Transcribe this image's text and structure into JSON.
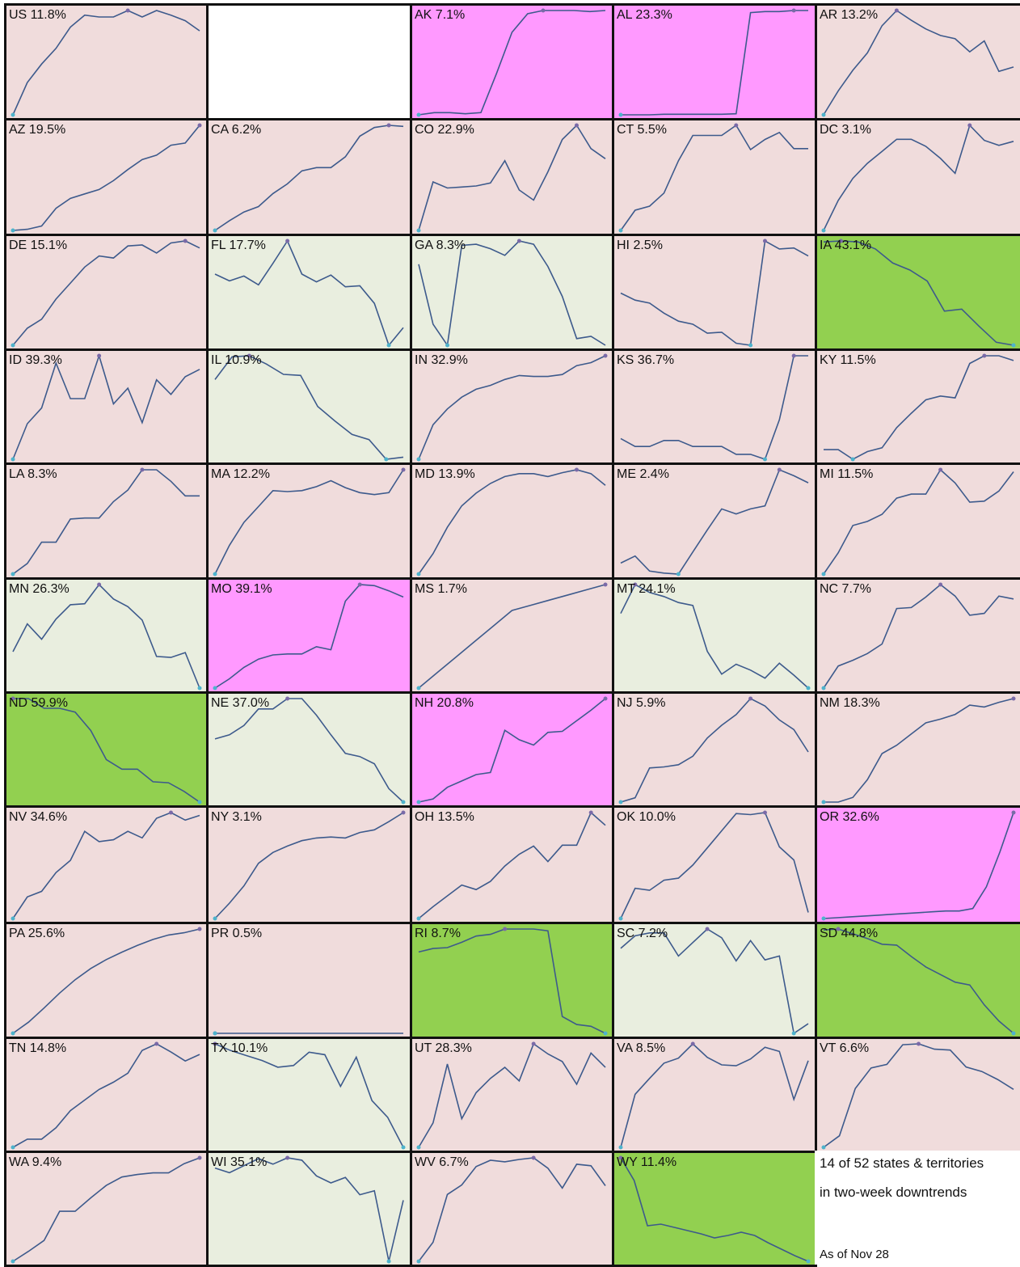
{
  "colors": {
    "rising": "#f0dcdc",
    "falling": "#e9eedf",
    "surging": "#ff99ff",
    "strongly_falling": "#92d050",
    "line": "#3d5a8c",
    "peak_marker": "#7a6aa8",
    "low_marker": "#4db3cc",
    "border": "#111111"
  },
  "note": {
    "line1": "14 of 52 states & territories",
    "line2": "in two-week downtrends",
    "date": "As of Nov 28"
  },
  "chart_data": [
    {
      "type": "line",
      "title": "US 11.8%",
      "status": "rising",
      "values": [
        0,
        35,
        55,
        72,
        95,
        108,
        106,
        106,
        113,
        106,
        113,
        108,
        102,
        91
      ]
    },
    {
      "type": "empty",
      "title": "",
      "status": "blank",
      "values": []
    },
    {
      "type": "line",
      "title": "AK 7.1%",
      "status": "surging",
      "values": [
        2,
        4,
        4,
        3,
        4,
        40,
        78,
        95,
        98,
        98,
        98,
        97,
        98
      ]
    },
    {
      "type": "line",
      "title": "AL 23.3%",
      "status": "surging",
      "values": [
        1,
        1,
        1,
        1.5,
        1.5,
        1.5,
        1.5,
        1.5,
        2,
        97,
        98,
        98,
        99,
        99
      ]
    },
    {
      "type": "line",
      "title": "AR 13.2%",
      "status": "rising",
      "values": [
        0,
        22,
        41,
        57,
        82,
        96,
        87,
        79,
        73,
        70,
        58,
        68,
        40,
        44
      ]
    },
    {
      "type": "line",
      "title": "AZ 19.5%",
      "status": "rising",
      "values": [
        0,
        1,
        4,
        20,
        29,
        33,
        37,
        45,
        55,
        64,
        68,
        77,
        79,
        95
      ]
    },
    {
      "type": "line",
      "title": "CA 6.2%",
      "status": "rising",
      "values": [
        0,
        9,
        17,
        22,
        34,
        43,
        55,
        58,
        58,
        68,
        87,
        95,
        97,
        96
      ]
    },
    {
      "type": "line",
      "title": "CO 22.9%",
      "status": "rising",
      "values": [
        0,
        48,
        42,
        43,
        44,
        47,
        69,
        40,
        30,
        58,
        90,
        104,
        81,
        71
      ]
    },
    {
      "type": "line",
      "title": "CT 5.5%",
      "status": "rising",
      "values": [
        0,
        20,
        24,
        37,
        69,
        94,
        94,
        94,
        104,
        80,
        90,
        97,
        81,
        81
      ]
    },
    {
      "type": "line",
      "title": "DC 3.1%",
      "status": "rising",
      "values": [
        0,
        30,
        52,
        67,
        79,
        91,
        91,
        84,
        72,
        57,
        105,
        90,
        85,
        89
      ]
    },
    {
      "type": "line",
      "title": "DE 15.1%",
      "status": "rising",
      "values": [
        0,
        17,
        26,
        46,
        62,
        78,
        89,
        87,
        99,
        100,
        92,
        102,
        104,
        97
      ]
    },
    {
      "type": "line",
      "title": "FL 17.7%",
      "status": "falling",
      "values": [
        73,
        66,
        71,
        62,
        84,
        107,
        73,
        65,
        72,
        60,
        61,
        43,
        0,
        18
      ]
    },
    {
      "type": "line",
      "title": "GA 8.3%",
      "status": "falling",
      "values": [
        73,
        19,
        0,
        90,
        91,
        87,
        81,
        94,
        91,
        71,
        44,
        6,
        8,
        0
      ]
    },
    {
      "type": "line",
      "title": "HI 2.5%",
      "status": "rising",
      "values": [
        52,
        45,
        42,
        32,
        24,
        21,
        12,
        13,
        2,
        0,
        104,
        96,
        97,
        89
      ]
    },
    {
      "type": "line",
      "title": "IA 43.1%",
      "status": "strongly_falling",
      "values": [
        103,
        104,
        103,
        96,
        82,
        75,
        64,
        34,
        36,
        19,
        3,
        0
      ]
    },
    {
      "type": "line",
      "title": "ID 39.3%",
      "status": "rising",
      "values": [
        0,
        34,
        49,
        92,
        58,
        58,
        99,
        53,
        68,
        35,
        76,
        62,
        79,
        86
      ]
    },
    {
      "type": "line",
      "title": "IL 10.9%",
      "status": "falling",
      "values": [
        77,
        99,
        100,
        92,
        82,
        81,
        51,
        37,
        24,
        19,
        0,
        2
      ]
    },
    {
      "type": "line",
      "title": "IN 32.9%",
      "status": "rising",
      "values": [
        0,
        35,
        51,
        63,
        71,
        75,
        81,
        85,
        84,
        84,
        86,
        95,
        98,
        105
      ]
    },
    {
      "type": "line",
      "title": "KS 36.7%",
      "status": "rising",
      "values": [
        21,
        13,
        13,
        19,
        19,
        13,
        13,
        13,
        5,
        5,
        0,
        40,
        105,
        105
      ]
    },
    {
      "type": "line",
      "title": "KY 11.5%",
      "status": "rising",
      "values": [
        10,
        10,
        0,
        8,
        12,
        33,
        48,
        62,
        66,
        64,
        100,
        108,
        108,
        103
      ]
    },
    {
      "type": "line",
      "title": "LA 8.3%",
      "status": "rising",
      "values": [
        0,
        11,
        33,
        33,
        57,
        58,
        58,
        75,
        87,
        108,
        108,
        96,
        81,
        81
      ]
    },
    {
      "type": "line",
      "title": "MA 12.2%",
      "status": "rising",
      "values": [
        0,
        29,
        52,
        68,
        84,
        83,
        84,
        88,
        94,
        87,
        82,
        80,
        82,
        105
      ]
    },
    {
      "type": "line",
      "title": "MD 13.9%",
      "status": "rising",
      "values": [
        0,
        21,
        48,
        70,
        83,
        93,
        100,
        103,
        103,
        100,
        104,
        107,
        103,
        91
      ]
    },
    {
      "type": "line",
      "title": "ME 2.4%",
      "status": "rising",
      "values": [
        11,
        18,
        3,
        1,
        0,
        22,
        44,
        65,
        60,
        65,
        68,
        104,
        98,
        91
      ]
    },
    {
      "type": "line",
      "title": "MI 11.5%",
      "status": "rising",
      "values": [
        0,
        21,
        48,
        52,
        59,
        75,
        79,
        79,
        103,
        90,
        71,
        72,
        82,
        101
      ]
    },
    {
      "type": "line",
      "title": "MN 26.3%",
      "status": "falling",
      "values": [
        38,
        67,
        51,
        72,
        87,
        88,
        108,
        93,
        85,
        71,
        33,
        32,
        37,
        0
      ]
    },
    {
      "type": "line",
      "title": "MO 39.1%",
      "status": "surging",
      "values": [
        0,
        9,
        20,
        28,
        32,
        33,
        33,
        40,
        37,
        84,
        100,
        99,
        94,
        88
      ]
    },
    {
      "type": "line",
      "title": "MS 1.7%",
      "status": "rising",
      "values": [
        0,
        18,
        36,
        54,
        72,
        90,
        96,
        102,
        108,
        114,
        120
      ]
    },
    {
      "type": "line",
      "title": "MT 24.1%",
      "status": "falling",
      "values": [
        75,
        104,
        96,
        92,
        86,
        83,
        37,
        14,
        24,
        18,
        10,
        25,
        13,
        0
      ]
    },
    {
      "type": "line",
      "title": "NC 7.7%",
      "status": "rising",
      "values": [
        0,
        23,
        29,
        36,
        46,
        83,
        84,
        95,
        108,
        96,
        76,
        78,
        96,
        93
      ]
    },
    {
      "type": "line",
      "title": "ND 59.9%",
      "status": "strongly_falling",
      "values": [
        112,
        112,
        102,
        102,
        98,
        79,
        49,
        39,
        39,
        26,
        25,
        16,
        5
      ]
    },
    {
      "type": "line",
      "title": "NE 37.0%",
      "status": "falling",
      "values": [
        61,
        65,
        74,
        90,
        90,
        100,
        100,
        84,
        65,
        47,
        44,
        37,
        13,
        0
      ]
    },
    {
      "type": "line",
      "title": "NH 20.8%",
      "status": "surging",
      "values": [
        0,
        3,
        14,
        20,
        26,
        28,
        68,
        59,
        54,
        66,
        67,
        77,
        87,
        98
      ]
    },
    {
      "type": "line",
      "title": "NJ 5.9%",
      "status": "rising",
      "values": [
        0,
        4,
        32,
        33,
        35,
        43,
        60,
        72,
        82,
        97,
        90,
        77,
        68,
        47
      ]
    },
    {
      "type": "line",
      "title": "NM 18.3%",
      "status": "rising",
      "values": [
        0,
        0,
        5,
        24,
        52,
        61,
        73,
        85,
        89,
        94,
        104,
        102,
        107,
        111
      ]
    },
    {
      "type": "line",
      "title": "NV 34.6%",
      "status": "rising",
      "values": [
        0,
        23,
        29,
        49,
        62,
        93,
        82,
        84,
        93,
        86,
        107,
        113,
        105,
        110
      ]
    },
    {
      "type": "line",
      "title": "NY 3.1%",
      "status": "rising",
      "values": [
        0,
        17,
        36,
        61,
        73,
        80,
        86,
        89,
        90,
        89,
        95,
        98,
        107,
        117
      ]
    },
    {
      "type": "line",
      "title": "OH 13.5%",
      "status": "rising",
      "values": [
        0,
        13,
        25,
        37,
        32,
        41,
        58,
        71,
        80,
        63,
        81,
        81,
        117,
        103
      ]
    },
    {
      "type": "line",
      "title": "OK 10.0%",
      "status": "rising",
      "values": [
        0,
        30,
        28,
        38,
        40,
        53,
        70,
        87,
        104,
        103,
        105,
        71,
        58,
        6
      ]
    },
    {
      "type": "line",
      "title": "OR 32.6%",
      "status": "surging",
      "values": [
        0,
        1,
        2,
        3,
        4,
        5,
        6,
        7,
        8,
        9,
        9,
        12,
        38,
        80,
        127
      ]
    },
    {
      "type": "line",
      "title": "PA 25.6%",
      "status": "rising",
      "values": [
        0,
        15,
        34,
        54,
        72,
        87,
        99,
        109,
        118,
        126,
        132,
        135,
        140
      ]
    },
    {
      "type": "line",
      "title": "PR 0.5%",
      "status": "rising",
      "values": [
        1,
        1,
        1,
        1,
        1,
        1,
        1,
        1,
        1,
        1,
        1,
        1,
        1,
        1
      ]
    },
    {
      "type": "line",
      "title": "RI 8.7%",
      "status": "strongly_falling",
      "values": [
        92,
        96,
        97,
        103,
        110,
        112,
        118,
        118,
        118,
        116,
        19,
        10,
        8,
        0
      ]
    },
    {
      "type": "line",
      "title": "SC 7.2%",
      "status": "falling",
      "values": [
        88,
        101,
        104,
        104,
        80,
        94,
        108,
        99,
        75,
        96,
        76,
        80,
        0,
        10
      ]
    },
    {
      "type": "line",
      "title": "SD 44.8%",
      "status": "strongly_falling",
      "values": [
        114,
        115,
        110,
        105,
        99,
        98,
        86,
        75,
        67,
        59,
        56,
        35,
        18,
        5
      ]
    },
    {
      "type": "line",
      "title": "TN 14.8%",
      "status": "rising",
      "values": [
        0,
        10,
        10,
        24,
        45,
        58,
        71,
        80,
        91,
        119,
        127,
        117,
        106,
        114
      ]
    },
    {
      "type": "line",
      "title": "TX 10.1%",
      "status": "falling",
      "values": [
        124,
        116,
        110,
        104,
        96,
        98,
        114,
        111,
        73,
        108,
        56,
        36,
        0
      ]
    },
    {
      "type": "line",
      "title": "UT 28.3%",
      "status": "rising",
      "values": [
        0,
        29,
        99,
        34,
        65,
        82,
        95,
        79,
        123,
        111,
        102,
        75,
        112,
        95
      ]
    },
    {
      "type": "line",
      "title": "VA 8.5%",
      "status": "rising",
      "values": [
        0,
        63,
        82,
        100,
        106,
        123,
        107,
        98,
        97,
        105,
        119,
        114,
        57,
        103
      ]
    },
    {
      "type": "line",
      "title": "VT 6.6%",
      "status": "rising",
      "values": [
        0,
        13,
        66,
        89,
        93,
        115,
        116,
        110,
        109,
        90,
        85,
        76,
        65
      ]
    },
    {
      "type": "line",
      "title": "WA 9.4%",
      "status": "rising",
      "values": [
        0,
        12,
        25,
        60,
        60,
        76,
        91,
        101,
        104,
        106,
        106,
        117,
        124
      ]
    },
    {
      "type": "line",
      "title": "WI 35.1%",
      "status": "falling",
      "values": [
        119,
        113,
        122,
        131,
        124,
        132,
        129,
        109,
        100,
        107,
        85,
        90,
        0,
        78
      ]
    },
    {
      "type": "line",
      "title": "WV 6.7%",
      "status": "rising",
      "values": [
        0,
        24,
        84,
        96,
        119,
        127,
        125,
        128,
        130,
        117,
        92,
        122,
        120,
        95
      ]
    },
    {
      "type": "line",
      "title": "WY 11.4%",
      "status": "strongly_falling",
      "values": [
        130,
        102,
        46,
        48,
        44,
        40,
        36,
        31,
        34,
        38,
        34,
        25,
        17,
        9,
        2
      ]
    }
  ]
}
